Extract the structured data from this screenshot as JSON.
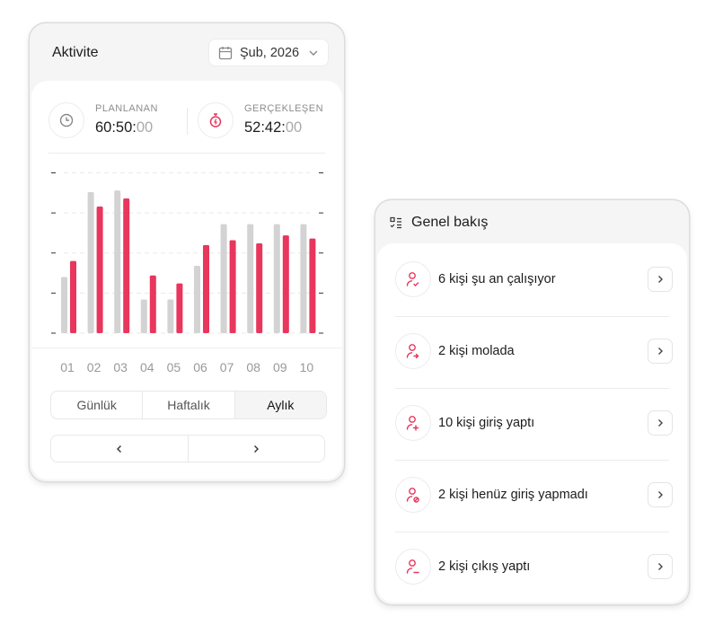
{
  "activity": {
    "title": "Aktivite",
    "date_selector": {
      "value": "Şub, 2026",
      "icon": "calendar-icon"
    },
    "planned": {
      "label": "PLANLANAN",
      "value_main": "60:50:",
      "value_dim": "00",
      "icon": "clock-icon"
    },
    "actual": {
      "label": "GERÇEKLEŞEN",
      "value_main": "52:42:",
      "value_dim": "00",
      "icon": "stopwatch-icon"
    },
    "tabs": [
      {
        "label": "Günlük"
      },
      {
        "label": "Haftalık"
      },
      {
        "label": "Aylık",
        "selected": true
      }
    ],
    "pager": {
      "prev": "‹",
      "next": "›"
    }
  },
  "chart_data": {
    "type": "bar",
    "categories": [
      "01",
      "02",
      "03",
      "04",
      "05",
      "06",
      "07",
      "08",
      "09",
      "10"
    ],
    "series": [
      {
        "values": [
          35,
          88,
          89,
          21,
          21,
          42,
          68,
          68,
          68,
          68
        ],
        "color": "#d3d3d3"
      },
      {
        "values": [
          45,
          79,
          84,
          36,
          31,
          55,
          58,
          56,
          61,
          59
        ],
        "color": "#e8365d"
      }
    ],
    "ylim": [
      0,
      100
    ],
    "grid": true
  },
  "overview": {
    "title": "Genel bakış",
    "items": [
      {
        "label": "6 kişi şu an çalışıyor",
        "icon": "user-check-icon"
      },
      {
        "label": "2 kişi molada",
        "icon": "user-break-icon"
      },
      {
        "label": "10 kişi giriş yaptı",
        "icon": "user-plus-icon"
      },
      {
        "label": "2 kişi henüz giriş yapmadı",
        "icon": "user-blocked-icon"
      },
      {
        "label": "2 kişi çıkış yaptı",
        "icon": "user-minus-icon"
      }
    ],
    "accent": "#e8365d"
  }
}
